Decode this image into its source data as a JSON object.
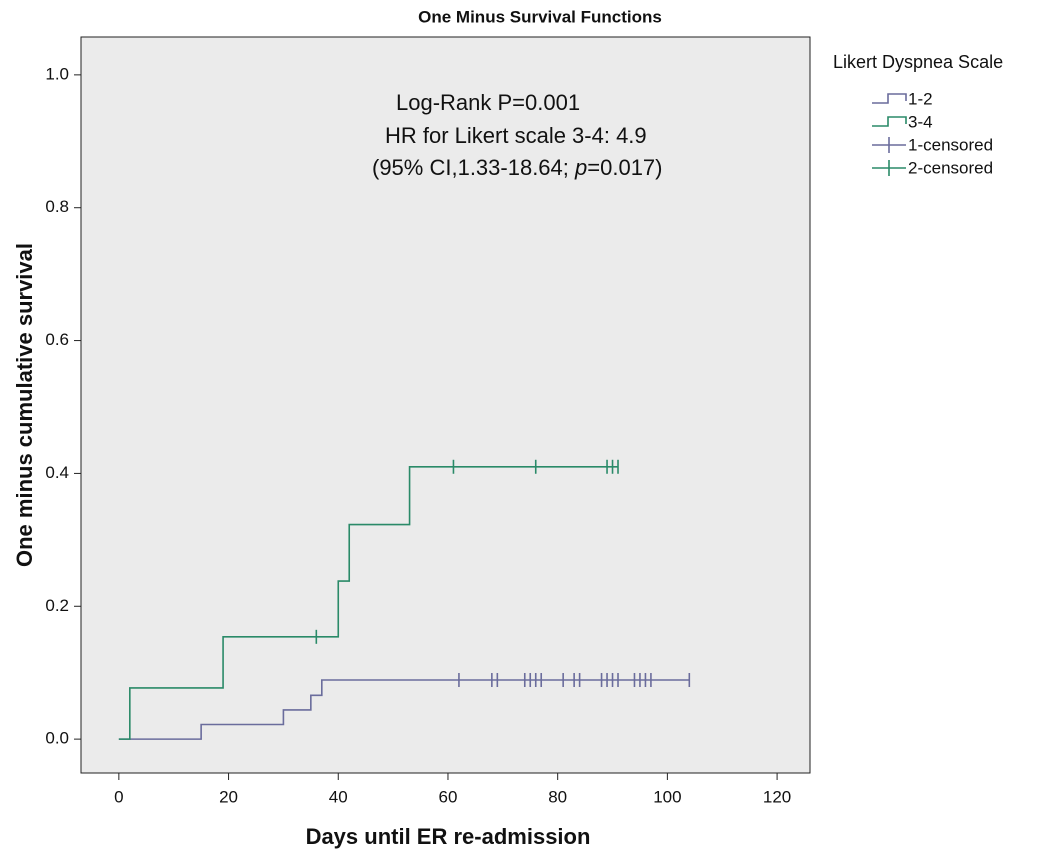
{
  "chart_data": {
    "type": "step",
    "title": "One Minus Survival Functions",
    "x_label": "Days until ER re-admission",
    "y_label": "One minus cumulative survival",
    "legend_title": "Likert Dyspnea Scale",
    "annotations": [
      "Log-Rank P=0.001",
      "HR for Likert scale 3-4: 4.9",
      [
        "(95% CI,1.33-18.64; ",
        "p",
        "=0.017)"
      ]
    ],
    "xlim": [
      -6.9,
      126
    ],
    "ylim": [
      -0.051,
      1.057
    ],
    "xticks": [
      0,
      20,
      40,
      60,
      80,
      100,
      120
    ],
    "yticks": [
      {
        "value": 0,
        "label": "0.0"
      },
      0.2,
      0.4,
      0.6,
      0.8,
      {
        "value": 1,
        "label": "1.0"
      }
    ],
    "series": [
      {
        "name": "1-2",
        "kind": "step",
        "color": "#6a6c9c",
        "x": [
          0,
          15,
          30,
          35,
          37,
          104
        ],
        "values": [
          0,
          0.022,
          0.044,
          0.066,
          0.089,
          0.089
        ]
      },
      {
        "name": "3-4",
        "kind": "step",
        "color": "#2a8a68",
        "x": [
          0,
          2,
          19,
          40,
          42,
          53,
          91
        ],
        "values": [
          0,
          0.077,
          0.154,
          0.238,
          0.323,
          0.41,
          0.41
        ]
      },
      {
        "name": "1-censored",
        "kind": "censor",
        "color": "#6a6c9c",
        "x": [
          62,
          68,
          69,
          74,
          75,
          76,
          77,
          81,
          83,
          84,
          88,
          89,
          90,
          91,
          94,
          95,
          96,
          97,
          104
        ],
        "values": [
          0.089,
          0.089,
          0.089,
          0.089,
          0.089,
          0.089,
          0.089,
          0.089,
          0.089,
          0.089,
          0.089,
          0.089,
          0.089,
          0.089,
          0.089,
          0.089,
          0.089,
          0.089,
          0.089
        ]
      },
      {
        "name": "2-censored",
        "kind": "censor",
        "color": "#2a8a68",
        "x": [
          36,
          61,
          76,
          89,
          90,
          91
        ],
        "values": [
          0.154,
          0.41,
          0.41,
          0.41,
          0.41,
          0.41
        ]
      }
    ]
  }
}
